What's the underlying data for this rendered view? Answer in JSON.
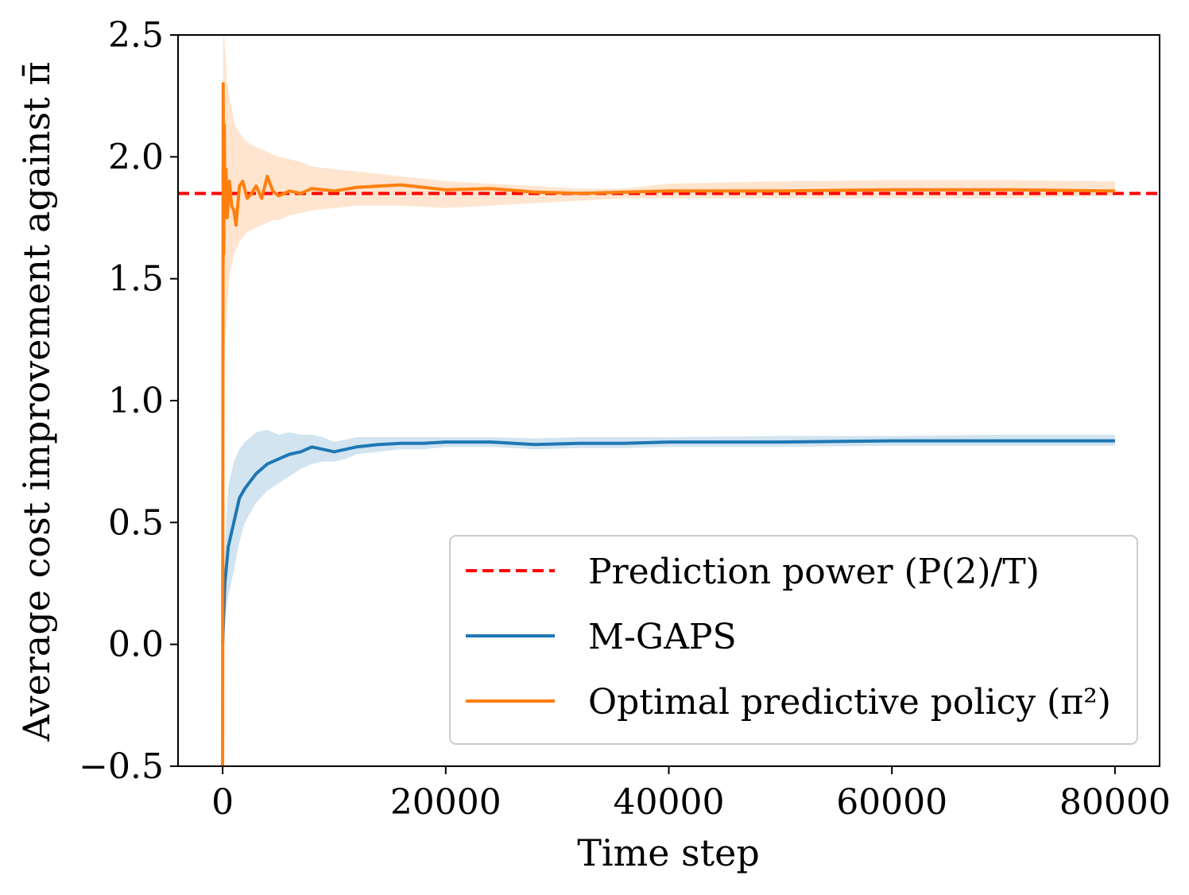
{
  "chart_data": {
    "type": "line",
    "xlabel": "Time step",
    "ylabel": "Average cost improvement against π̄",
    "xlim": [
      -4000,
      84000
    ],
    "ylim": [
      -0.5,
      2.5
    ],
    "xticks": [
      0,
      20000,
      40000,
      60000,
      80000
    ],
    "xtick_labels": [
      "0",
      "20000",
      "40000",
      "60000",
      "80000"
    ],
    "yticks": [
      -0.5,
      0.0,
      0.5,
      1.0,
      1.5,
      2.0,
      2.5
    ],
    "ytick_labels": [
      "−0.5",
      "0.0",
      "0.5",
      "1.0",
      "1.5",
      "2.0",
      "2.5"
    ],
    "legend_position": "lower-right",
    "reference_line": {
      "name": "Prediction power (P(2)/T)",
      "y": 1.85,
      "color": "#ff0000",
      "style": "dashed"
    },
    "series": [
      {
        "name": "M-GAPS",
        "color": "#1f77b4",
        "x": [
          0,
          200,
          500,
          1000,
          1500,
          2000,
          3000,
          4000,
          5000,
          6000,
          7000,
          8000,
          9000,
          10000,
          11000,
          12000,
          14000,
          16000,
          18000,
          20000,
          24000,
          28000,
          32000,
          36000,
          40000,
          50000,
          60000,
          70000,
          80000
        ],
        "values": [
          0.0,
          0.25,
          0.4,
          0.5,
          0.6,
          0.64,
          0.7,
          0.74,
          0.76,
          0.78,
          0.79,
          0.81,
          0.8,
          0.79,
          0.8,
          0.81,
          0.82,
          0.825,
          0.825,
          0.83,
          0.83,
          0.82,
          0.825,
          0.825,
          0.83,
          0.83,
          0.835,
          0.835,
          0.835
        ],
        "band_upper": [
          0.0,
          0.4,
          0.65,
          0.75,
          0.8,
          0.83,
          0.87,
          0.88,
          0.86,
          0.87,
          0.86,
          0.86,
          0.85,
          0.83,
          0.84,
          0.85,
          0.85,
          0.85,
          0.85,
          0.85,
          0.85,
          0.845,
          0.85,
          0.85,
          0.85,
          0.855,
          0.855,
          0.86,
          0.86
        ],
        "band_lower": [
          0.0,
          0.1,
          0.2,
          0.3,
          0.42,
          0.5,
          0.58,
          0.63,
          0.66,
          0.69,
          0.72,
          0.74,
          0.75,
          0.75,
          0.76,
          0.78,
          0.79,
          0.8,
          0.8,
          0.81,
          0.81,
          0.8,
          0.805,
          0.805,
          0.81,
          0.81,
          0.815,
          0.815,
          0.815
        ]
      },
      {
        "name": "Optimal predictive policy (π²)",
        "color": "#ff7f0e",
        "x": [
          0,
          50,
          100,
          150,
          200,
          300,
          400,
          600,
          800,
          1000,
          1200,
          1500,
          1800,
          2200,
          2600,
          3000,
          3500,
          4000,
          4500,
          5000,
          6000,
          7000,
          8000,
          10000,
          12000,
          14000,
          16000,
          20000,
          24000,
          28000,
          32000,
          36000,
          40000,
          50000,
          60000,
          70000,
          80000
        ],
        "values": [
          -0.5,
          2.3,
          1.6,
          2.13,
          1.8,
          1.95,
          1.75,
          1.9,
          1.8,
          1.78,
          1.72,
          1.88,
          1.9,
          1.83,
          1.85,
          1.88,
          1.83,
          1.92,
          1.86,
          1.84,
          1.86,
          1.85,
          1.87,
          1.86,
          1.875,
          1.88,
          1.885,
          1.865,
          1.87,
          1.855,
          1.85,
          1.855,
          1.86,
          1.86,
          1.865,
          1.865,
          1.86
        ],
        "band_upper": [
          1.2,
          2.5,
          2.5,
          2.5,
          2.45,
          2.4,
          2.3,
          2.25,
          2.2,
          2.15,
          2.12,
          2.1,
          2.08,
          2.06,
          2.05,
          2.04,
          2.03,
          2.02,
          2.01,
          2.0,
          1.99,
          1.98,
          1.96,
          1.95,
          1.94,
          1.93,
          1.92,
          1.9,
          1.89,
          1.88,
          1.87,
          1.87,
          1.89,
          1.9,
          1.905,
          1.905,
          1.9
        ],
        "band_lower": [
          -0.5,
          0.9,
          1.0,
          1.1,
          1.2,
          1.3,
          1.4,
          1.5,
          1.55,
          1.6,
          1.62,
          1.65,
          1.67,
          1.69,
          1.7,
          1.71,
          1.72,
          1.73,
          1.74,
          1.74,
          1.76,
          1.77,
          1.78,
          1.79,
          1.8,
          1.8,
          1.8,
          1.79,
          1.8,
          1.81,
          1.82,
          1.83,
          1.83,
          1.83,
          1.83,
          1.83,
          1.84
        ]
      }
    ]
  },
  "legend": {
    "items": [
      {
        "label": "Prediction power (P(2)/T)",
        "color": "#ff0000",
        "style": "dashed"
      },
      {
        "label": "M-GAPS",
        "color": "#1f77b4",
        "style": "solid"
      },
      {
        "label": "Optimal predictive policy (π²)",
        "color": "#ff7f0e",
        "style": "solid"
      }
    ]
  }
}
